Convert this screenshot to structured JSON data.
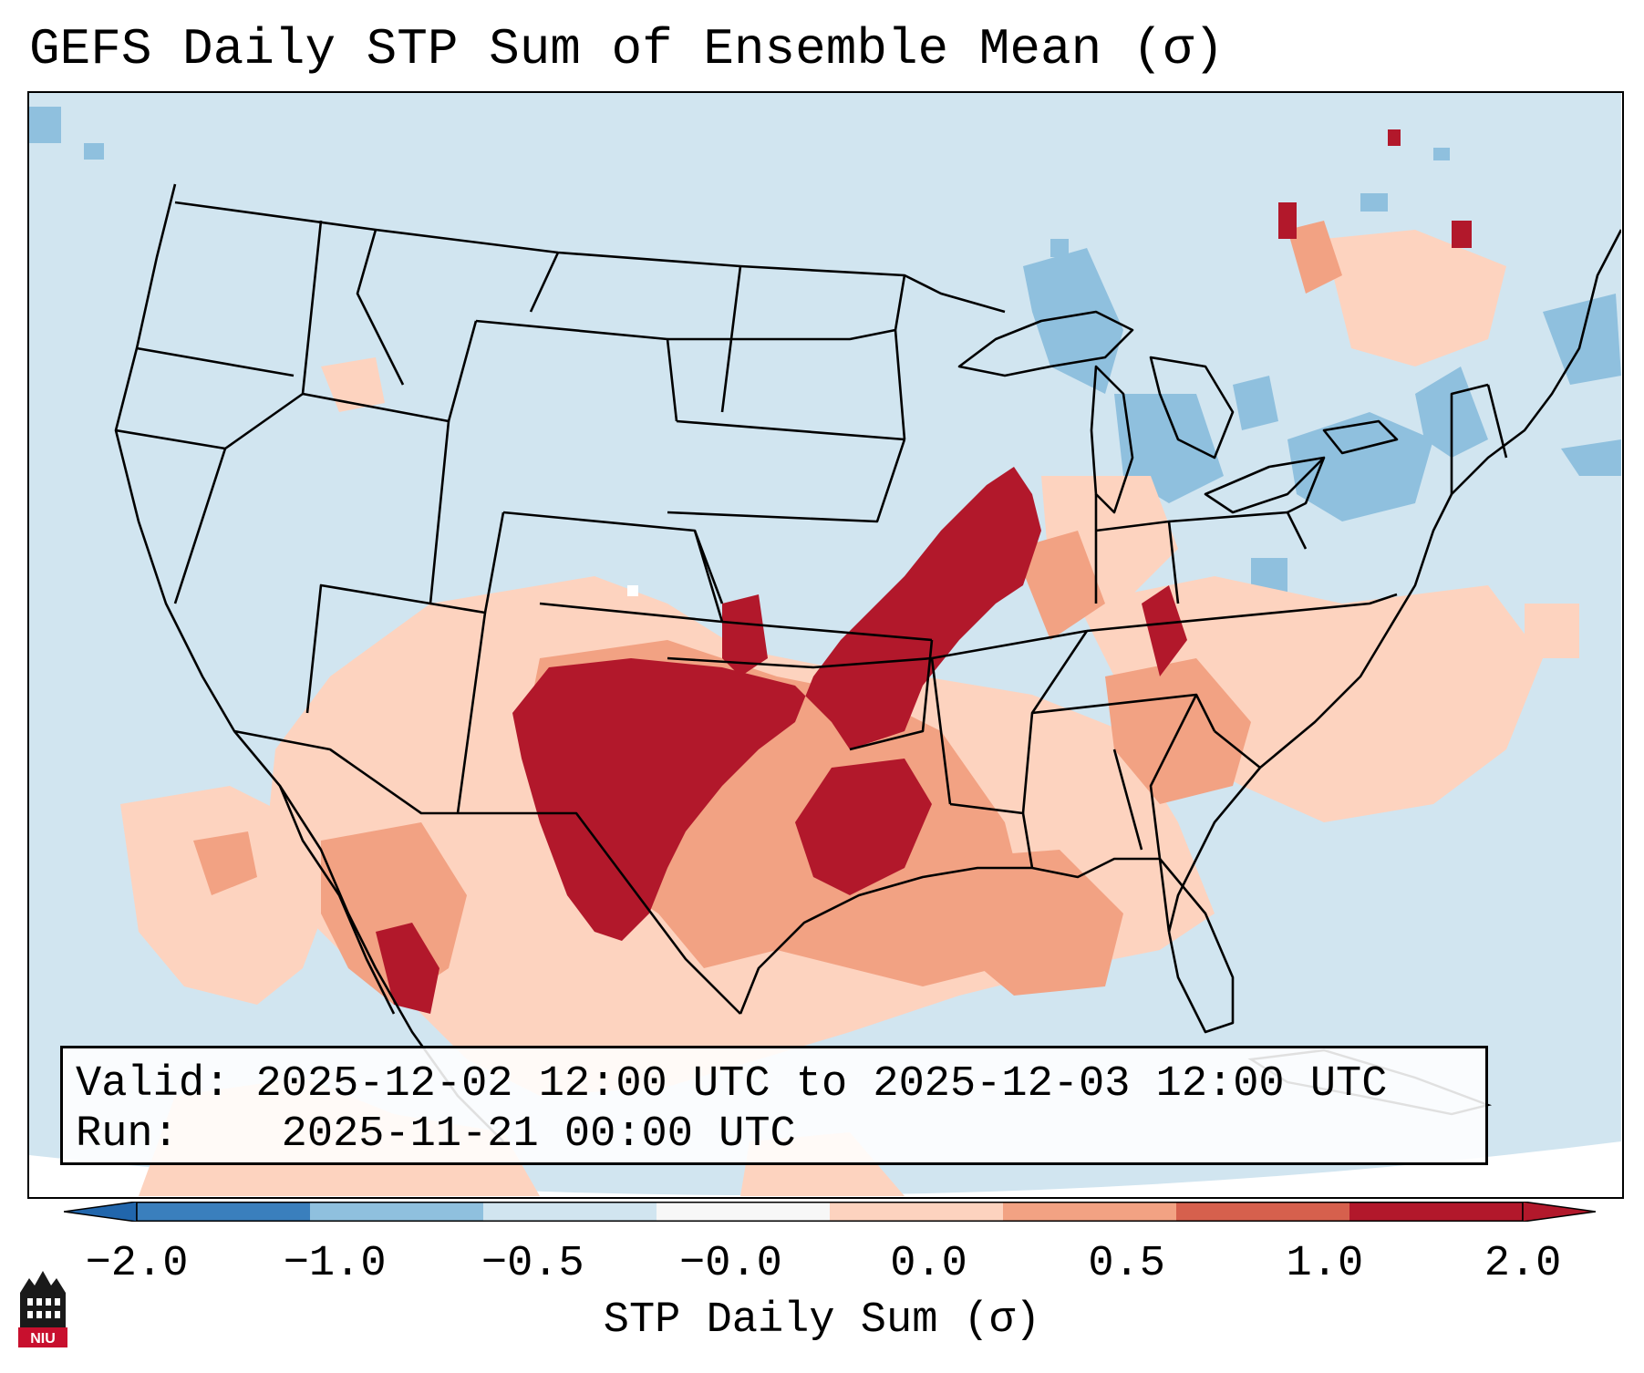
{
  "title": "GEFS Daily STP Sum of Ensemble Mean (σ)",
  "info": {
    "valid_label": "Valid:",
    "valid_value": "2025-12-02 12:00 UTC to 2025-12-03 12:00 UTC",
    "run_label": "Run:",
    "run_value": "2025-11-21 00:00 UTC"
  },
  "colorbar": {
    "label": "STP Daily Sum (σ)",
    "ticks": [
      "−2.0",
      "−1.0",
      "−0.5",
      "−0.0",
      "0.0",
      "0.5",
      "1.0",
      "2.0"
    ],
    "colors": [
      "#3a7fbd",
      "#8fc0de",
      "#d1e5f0",
      "#f7f7f7",
      "#fdd3bf",
      "#f2a283",
      "#d6604d",
      "#b2182b"
    ],
    "extend_low_color": "#2166ac",
    "extend_high_color": "#b2182b"
  },
  "map": {
    "background_color": "#d1e5f0",
    "feature": "Ensemble-mean STP anomaly; highest values over Oklahoma, north Texas, Arkansas, southern Missouri and the Mid-South"
  },
  "logo": {
    "text": "NIU"
  }
}
